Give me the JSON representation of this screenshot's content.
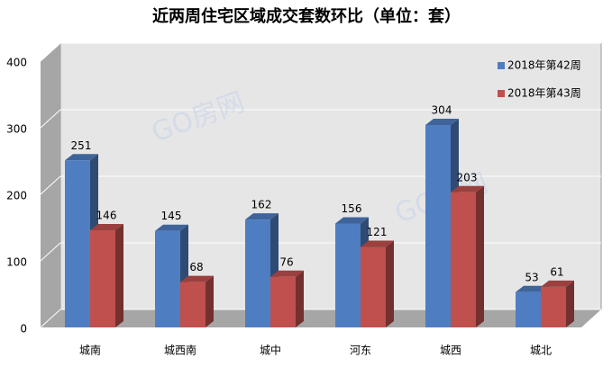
{
  "chart_data": {
    "type": "bar3d",
    "title": "近两周住宅区域成交套数环比（单位：套）",
    "watermark": "GO房网",
    "categories": [
      "城南",
      "城西南",
      "城中",
      "河东",
      "城西",
      "城北"
    ],
    "series": [
      {
        "name": "2018年第42周",
        "color": "#4f7dc1",
        "values": [
          251,
          145,
          162,
          156,
          304,
          53
        ]
      },
      {
        "name": "2018年第43周",
        "color": "#c0504d",
        "values": [
          146,
          68,
          76,
          121,
          203,
          61
        ]
      }
    ],
    "ylim": [
      0,
      400
    ],
    "yticks": [
      0,
      100,
      200,
      300,
      400
    ],
    "grid": true,
    "legend": "top-right"
  }
}
